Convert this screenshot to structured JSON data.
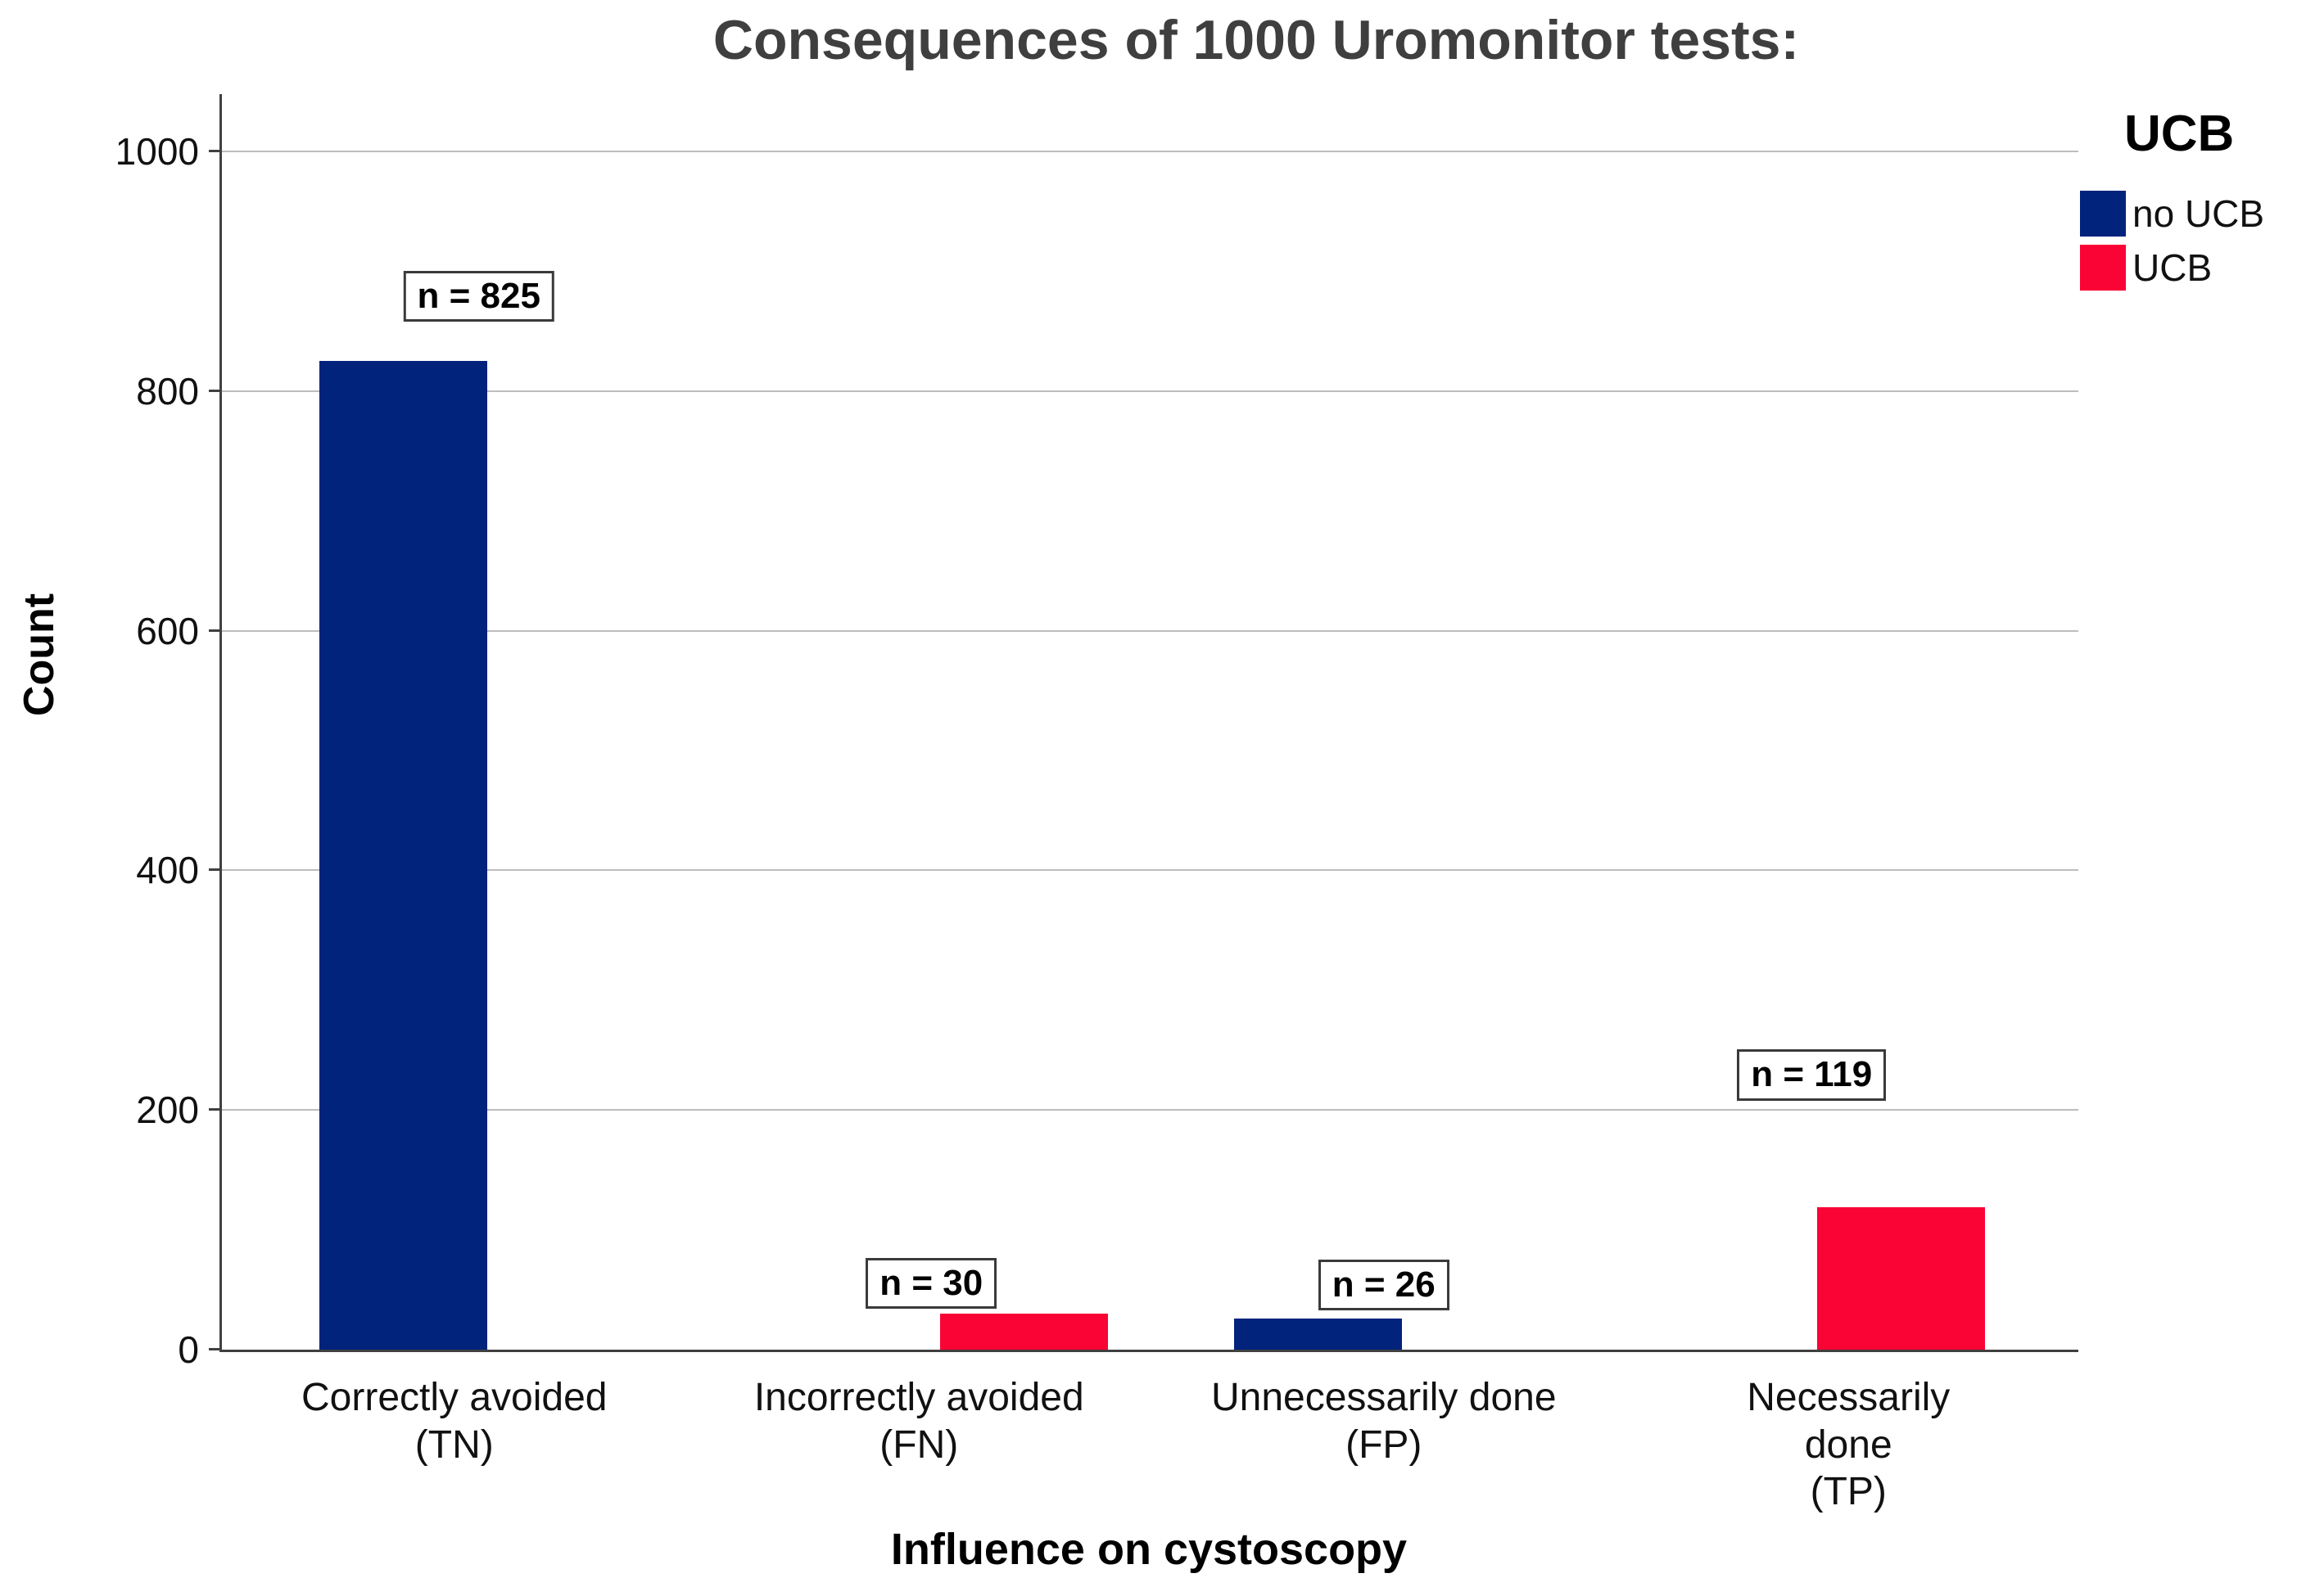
{
  "chart_data": {
    "type": "bar",
    "title": "Consequences of 1000 Uromonitor tests:",
    "xlabel": "Influence on cystoscopy",
    "ylabel": "Count",
    "categories": [
      "Correctly avoided\n(TN)",
      "Incorrectly avoided\n(FN)",
      "Unnecessarily done\n(FP)",
      "Necessarily done\n(TP)"
    ],
    "values": [
      825,
      30,
      26,
      119
    ],
    "bar_labels": [
      "n = 825",
      "n = 30",
      "n = 26",
      "n = 119"
    ],
    "series": [
      "no UCB",
      "UCB",
      "no UCB",
      "UCB"
    ],
    "yticks": [
      0,
      200,
      400,
      600,
      800,
      1000
    ],
    "ylim": [
      0,
      1050
    ],
    "grid": true,
    "legend": {
      "title": "UCB",
      "position": "top-right",
      "entries": [
        {
          "label": "no UCB",
          "color": "#02237C"
        },
        {
          "label": "UCB",
          "color": "#FA0335"
        }
      ]
    },
    "style_colors": {
      "title_text": "#3F3F3F",
      "axis": "#404040",
      "gridline": "#BDBDBD",
      "label_box_border": "#3A3A3A"
    }
  }
}
